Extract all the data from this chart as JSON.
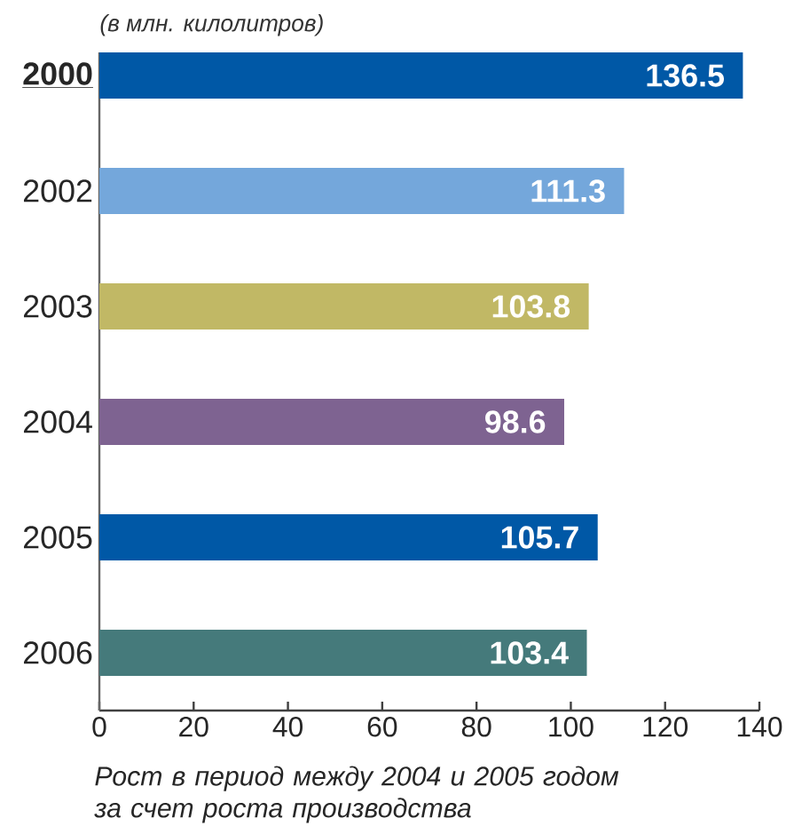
{
  "chart_data": {
    "type": "bar",
    "orientation": "horizontal",
    "subtitle": "(в млн. килолитров)",
    "categories": [
      "2000",
      "2002",
      "2003",
      "2004",
      "2005",
      "2006"
    ],
    "values": [
      136.5,
      111.3,
      103.8,
      98.6,
      105.7,
      103.4
    ],
    "colors": [
      "#0058a6",
      "#74a7db",
      "#c1b865",
      "#7e6391",
      "#0058a6",
      "#457a7b"
    ],
    "xlim": [
      0,
      140
    ],
    "xticks": [
      0,
      20,
      40,
      60,
      80,
      100,
      120,
      140
    ],
    "data_labels": true,
    "annotations": [
      "Рост в период между 2004 и 2005 годом за счет роста производства"
    ]
  }
}
